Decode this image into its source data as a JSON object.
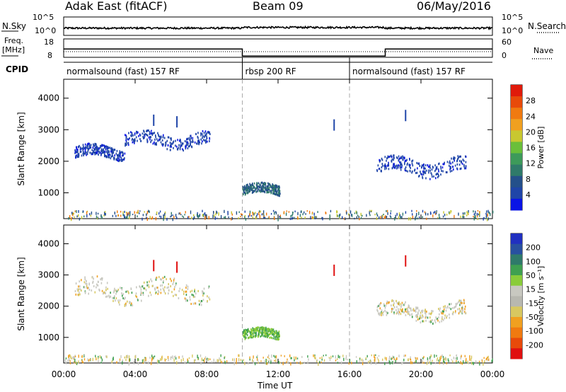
{
  "header": {
    "station": "Adak East (fitACF)",
    "beam": "Beam 09",
    "date": "06/May/2016"
  },
  "summary_panel": {
    "left_label": "N.Sky",
    "right_label": "N.Search",
    "left_ticks": [
      "10^5",
      "10^0"
    ],
    "right_ticks": [
      "10^5",
      "10^0"
    ],
    "freq_label_1": "Freq.",
    "freq_label_2": "[MHz]",
    "freq_ticks": [
      "18",
      "8"
    ],
    "nave_label": "Nave",
    "nave_ticks": [
      "60",
      "0"
    ],
    "cpid_label": "CPID"
  },
  "cpid_segments": [
    {
      "label": "normalsound (fast) 157 RF",
      "start_h": 0,
      "end_h": 10
    },
    {
      "label": "rbsp 200 RF",
      "start_h": 10,
      "end_h": 16
    },
    {
      "label": "normalsound (fast) 157 RF",
      "start_h": 16,
      "end_h": 24
    }
  ],
  "x_axis": {
    "label": "Time UT",
    "ticks": [
      "00:00",
      "04:00",
      "08:00",
      "12:00",
      "16:00",
      "20:00",
      "00:00"
    ]
  },
  "power_panel": {
    "ylabel": "Slant Range [km]",
    "yticks": [
      "4000",
      "3000",
      "2000",
      "1000"
    ],
    "colorbar_label": "Power [dB]",
    "colorbar_ticks": [
      "28",
      "24",
      "20",
      "16",
      "12",
      "8",
      "4"
    ],
    "colors": [
      "#0a14e6",
      "#1f45a8",
      "#24508a",
      "#2f7a6a",
      "#3d9a5a",
      "#6abf3a",
      "#c8c830",
      "#f0a020",
      "#f07a10",
      "#e84a0a",
      "#e01a0a"
    ]
  },
  "velocity_panel": {
    "ylabel": "Slant Range [km]",
    "yticks": [
      "4000",
      "3000",
      "2000",
      "1000"
    ],
    "colorbar_label": "Velocity [m s⁻¹]",
    "colorbar_ticks": [
      "200",
      "100",
      "50",
      "15",
      "-15",
      "-50",
      "-100",
      "-200"
    ],
    "colors": [
      "#2030c0",
      "#2850a0",
      "#2f7a6a",
      "#3fa050",
      "#8acc3a",
      "#c8c8c0",
      "#b8b8b0",
      "#d8c860",
      "#f0a020",
      "#f07a10",
      "#e84a0a",
      "#e01010"
    ]
  },
  "chart_data": {
    "type": "heatmap",
    "title": "Adak East (fitACF)  Beam 09  06/May/2016",
    "xlabel": "Time UT",
    "ylabel": "Slant Range [km]",
    "xlim": [
      0,
      24
    ],
    "ylim": [
      180,
      4600
    ],
    "frequency_mhz": [
      {
        "start_h": 0,
        "end_h": 10,
        "value": 12.5
      },
      {
        "start_h": 10,
        "end_h": 18,
        "value": 8.7
      },
      {
        "start_h": 18,
        "end_h": 24,
        "value": 12.5
      }
    ],
    "power_echo_regions": [
      {
        "t_start": 0.6,
        "t_end": 3.4,
        "range_km_start": 1950,
        "range_km_end": 2650,
        "power_db": 6
      },
      {
        "t_start": 3.4,
        "t_end": 8.2,
        "range_km_start": 2300,
        "range_km_end": 3100,
        "power_db": 6
      },
      {
        "t_start": 10.0,
        "t_end": 12.1,
        "range_km_start": 800,
        "range_km_end": 1400,
        "power_db": 9
      },
      {
        "t_start": 17.5,
        "t_end": 22.5,
        "range_km_start": 1400,
        "range_km_end": 2300,
        "power_db": 5
      }
    ],
    "velocity_echo_regions": [
      {
        "t_start": 0.6,
        "t_end": 8.2,
        "range_km_start": 1950,
        "range_km_end": 3100,
        "velocity_ms": 0
      },
      {
        "t_start": 10.0,
        "t_end": 12.1,
        "range_km_start": 800,
        "range_km_end": 1400,
        "velocity_ms": 60
      },
      {
        "t_start": 17.5,
        "t_end": 22.5,
        "range_km_start": 1400,
        "range_km_end": 2300,
        "velocity_ms": 0
      }
    ]
  }
}
